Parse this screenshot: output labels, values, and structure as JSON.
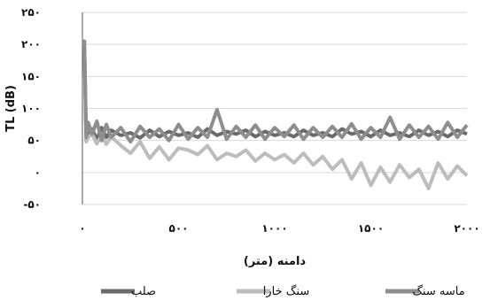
{
  "chart_data": {
    "type": "line",
    "title": "",
    "xlabel": "دامنه (متر)",
    "ylabel": "TL (dB)",
    "xlim": [
      0,
      2000
    ],
    "ylim": [
      -50,
      250
    ],
    "x_ticks": [
      {
        "value": 0,
        "label": "۰"
      },
      {
        "value": 500,
        "label": "۵۰۰"
      },
      {
        "value": 1000,
        "label": "۱۰۰۰"
      },
      {
        "value": 1500,
        "label": "۱۵۰۰"
      },
      {
        "value": 2000,
        "label": "۲۰۰۰"
      }
    ],
    "y_ticks": [
      {
        "value": 250,
        "label": "۲۵۰"
      },
      {
        "value": 200,
        "label": "۲۰۰"
      },
      {
        "value": 150,
        "label": "۱۵۰"
      },
      {
        "value": 100,
        "label": "۱۰۰"
      },
      {
        "value": 50,
        "label": "۵۰"
      },
      {
        "value": 0,
        "label": "۰"
      },
      {
        "value": -50,
        "label": "-۵۰"
      }
    ],
    "grid": true,
    "legend_position": "bottom",
    "series": [
      {
        "name": "صلب",
        "color": "#6b6b6b",
        "x": [
          0,
          10,
          20,
          30,
          50,
          75,
          100,
          125,
          150,
          200,
          250,
          300,
          350,
          400,
          450,
          500,
          550,
          600,
          650,
          700,
          750,
          800,
          850,
          900,
          950,
          1000,
          1050,
          1100,
          1150,
          1200,
          1250,
          1300,
          1350,
          1400,
          1450,
          1500,
          1550,
          1600,
          1650,
          1700,
          1750,
          1800,
          1850,
          1900,
          1950,
          2000
        ],
        "values": [
          205,
          205,
          50,
          60,
          68,
          52,
          70,
          55,
          66,
          58,
          62,
          54,
          66,
          56,
          64,
          58,
          62,
          55,
          68,
          58,
          64,
          60,
          66,
          56,
          64,
          58,
          62,
          56,
          66,
          58,
          62,
          56,
          68,
          60,
          64,
          56,
          66,
          58,
          62,
          56,
          66,
          58,
          64,
          56,
          66,
          60
        ]
      },
      {
        "name": "سنگ خارا",
        "color": "#bdbdbd",
        "x": [
          0,
          10,
          20,
          30,
          50,
          75,
          100,
          125,
          150,
          200,
          250,
          300,
          350,
          400,
          450,
          500,
          550,
          600,
          650,
          700,
          750,
          800,
          850,
          900,
          950,
          1000,
          1050,
          1100,
          1150,
          1200,
          1250,
          1300,
          1350,
          1400,
          1450,
          1500,
          1550,
          1600,
          1650,
          1700,
          1750,
          1800,
          1850,
          1900,
          1950,
          2000
        ],
        "values": [
          205,
          205,
          48,
          55,
          60,
          45,
          58,
          44,
          56,
          42,
          30,
          48,
          22,
          40,
          20,
          38,
          35,
          28,
          42,
          20,
          30,
          25,
          35,
          18,
          30,
          20,
          28,
          15,
          30,
          12,
          25,
          5,
          20,
          -10,
          15,
          -20,
          8,
          -15,
          12,
          -8,
          5,
          -25,
          15,
          -10,
          10,
          -5
        ]
      },
      {
        "name": "ماسه سنگ",
        "color": "#8e8e8e",
        "x": [
          0,
          10,
          20,
          30,
          50,
          75,
          100,
          125,
          150,
          200,
          250,
          300,
          350,
          400,
          450,
          500,
          550,
          600,
          650,
          700,
          750,
          800,
          850,
          900,
          950,
          1000,
          1050,
          1100,
          1150,
          1200,
          1250,
          1300,
          1350,
          1400,
          1450,
          1500,
          1550,
          1600,
          1650,
          1700,
          1750,
          1800,
          1850,
          1900,
          1950,
          2000
        ],
        "values": [
          205,
          205,
          55,
          78,
          60,
          80,
          50,
          75,
          55,
          70,
          48,
          72,
          55,
          68,
          50,
          75,
          52,
          70,
          55,
          98,
          52,
          72,
          55,
          74,
          52,
          70,
          56,
          74,
          52,
          70,
          55,
          72,
          55,
          76,
          52,
          70,
          55,
          86,
          52,
          74,
          55,
          72,
          52,
          78,
          55,
          74
        ]
      }
    ]
  }
}
